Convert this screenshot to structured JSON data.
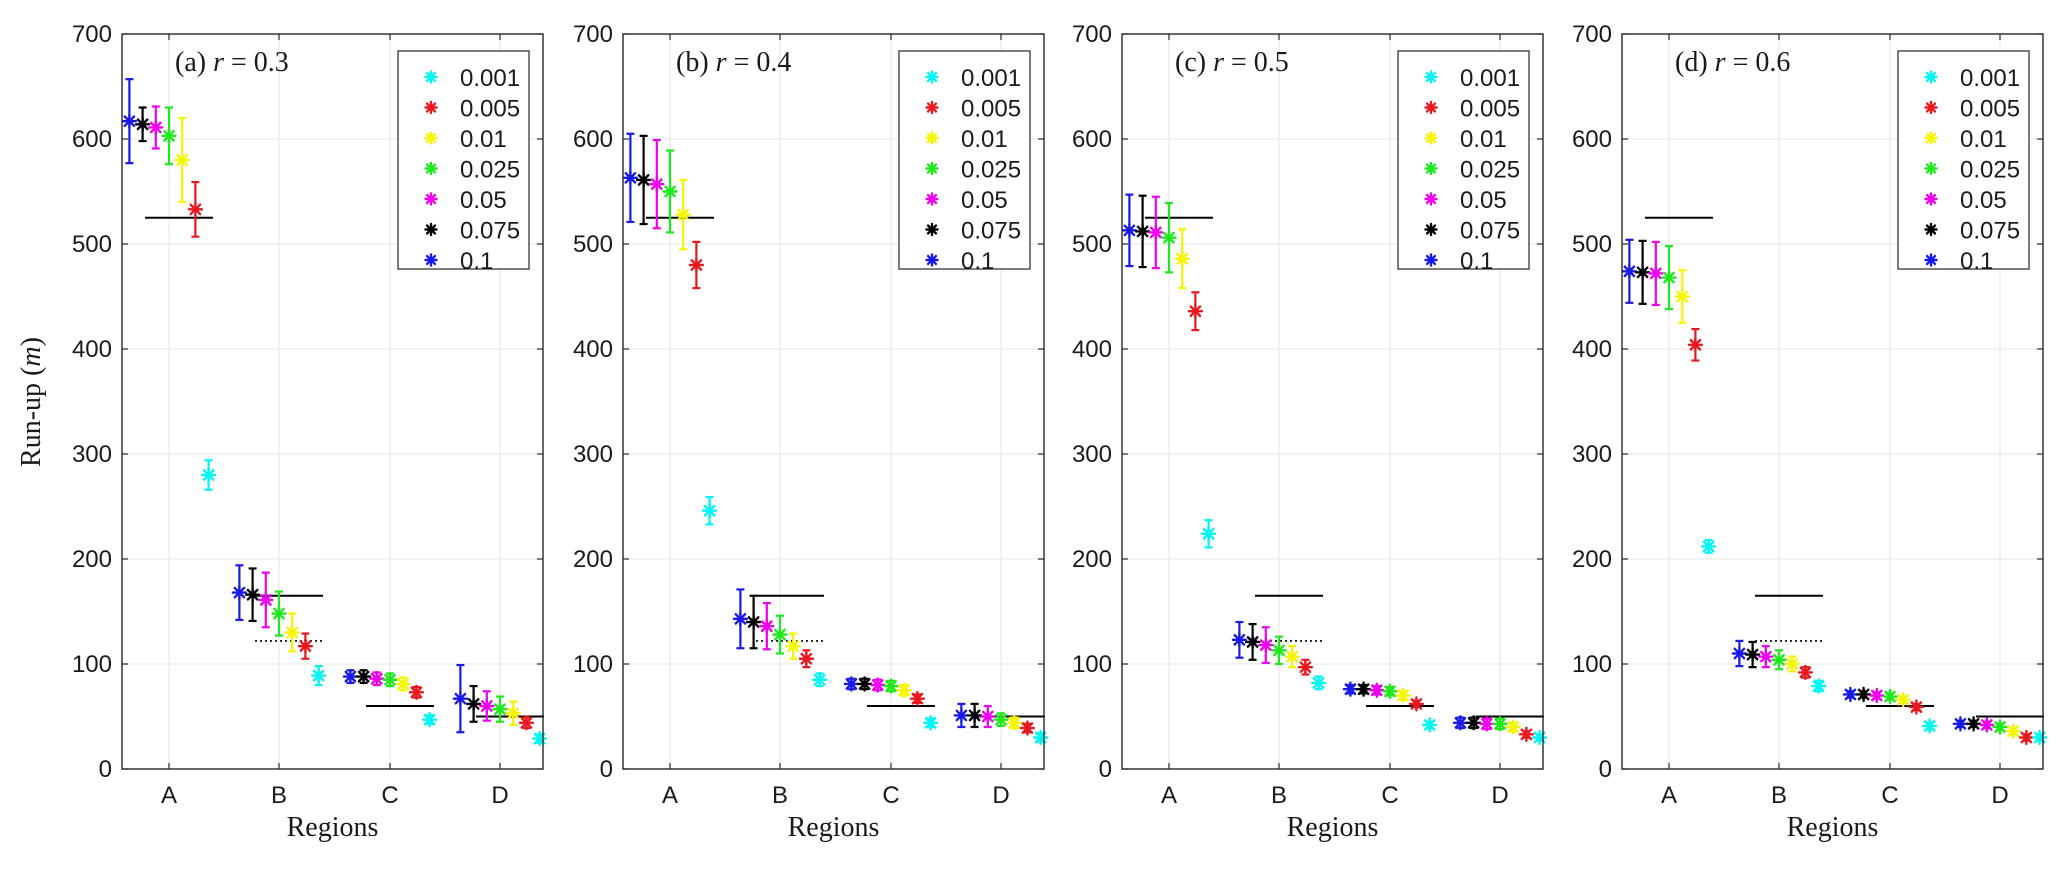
{
  "figure": {
    "ylabel": "Run-up (m)",
    "ylabel_prefix": "Run-up (",
    "ylabel_var": "m",
    "ylabel_suffix": ")"
  },
  "legend": {
    "entries": [
      {
        "label": "0.001",
        "color": "#00f5f5"
      },
      {
        "label": "0.005",
        "color": "#e8181e"
      },
      {
        "label": "0.01",
        "color": "#f5f500"
      },
      {
        "label": "0.025",
        "color": "#1ee81e"
      },
      {
        "label": "0.05",
        "color": "#ee00ee"
      },
      {
        "label": "0.075",
        "color": "#000000"
      },
      {
        "label": "0.1",
        "color": "#1a1ae6"
      }
    ]
  },
  "chart_data": [
    {
      "type": "scatter",
      "title": "(a) r = 0.3",
      "title_prefix": "(a) ",
      "title_var": "r",
      "title_suffix": " = 0.3",
      "xlabel": "Regions",
      "ylabel": "Run-up (m)",
      "categories": [
        "A",
        "B",
        "C",
        "D"
      ],
      "ylim": [
        0,
        700
      ],
      "yticks": [
        0,
        100,
        200,
        300,
        400,
        500,
        600,
        700
      ],
      "grid": true,
      "legend_position": "top-right",
      "reference_solid": [
        525,
        165,
        60,
        50
      ],
      "reference_dotted": [
        null,
        122,
        null,
        null
      ],
      "series": [
        {
          "name": "0.001",
          "mean": [
            280,
            89,
            47,
            29
          ],
          "err": [
            14,
            9,
            4,
            4
          ]
        },
        {
          "name": "0.005",
          "mean": [
            533,
            117,
            73,
            44
          ],
          "err": [
            26,
            12,
            5,
            5
          ]
        },
        {
          "name": "0.01",
          "mean": [
            580,
            130,
            81,
            53
          ],
          "err": [
            40,
            18,
            6,
            11
          ]
        },
        {
          "name": "0.025",
          "mean": [
            603,
            148,
            85,
            57
          ],
          "err": [
            27,
            21,
            6,
            12
          ]
        },
        {
          "name": "0.05",
          "mean": [
            611,
            161,
            86,
            60
          ],
          "err": [
            20,
            26,
            6,
            14
          ]
        },
        {
          "name": "0.075",
          "mean": [
            614,
            166,
            88,
            62
          ],
          "err": [
            16,
            25,
            6,
            17
          ]
        },
        {
          "name": "0.1",
          "mean": [
            617,
            168,
            88,
            67
          ],
          "err": [
            40,
            26,
            6,
            32
          ]
        }
      ]
    },
    {
      "type": "scatter",
      "title": "(b) r = 0.4",
      "title_prefix": "(b) ",
      "title_var": "r",
      "title_suffix": " = 0.4",
      "xlabel": "Regions",
      "ylabel": "",
      "categories": [
        "A",
        "B",
        "C",
        "D"
      ],
      "ylim": [
        0,
        700
      ],
      "yticks": [
        0,
        100,
        200,
        300,
        400,
        500,
        600,
        700
      ],
      "grid": true,
      "legend_position": "top-right",
      "reference_solid": [
        525,
        165,
        60,
        50
      ],
      "reference_dotted": [
        null,
        122,
        null,
        null
      ],
      "series": [
        {
          "name": "0.001",
          "mean": [
            246,
            85,
            44,
            30
          ],
          "err": [
            13,
            6,
            4,
            4
          ]
        },
        {
          "name": "0.005",
          "mean": [
            480,
            105,
            67,
            39
          ],
          "err": [
            22,
            8,
            4,
            4
          ]
        },
        {
          "name": "0.01",
          "mean": [
            528,
            117,
            75,
            44
          ],
          "err": [
            33,
            12,
            5,
            5
          ]
        },
        {
          "name": "0.025",
          "mean": [
            550,
            128,
            79,
            47
          ],
          "err": [
            39,
            18,
            5,
            6
          ]
        },
        {
          "name": "0.05",
          "mean": [
            557,
            136,
            80,
            50
          ],
          "err": [
            42,
            22,
            5,
            10
          ]
        },
        {
          "name": "0.075",
          "mean": [
            561,
            140,
            81,
            51
          ],
          "err": [
            42,
            25,
            5,
            11
          ]
        },
        {
          "name": "0.1",
          "mean": [
            563,
            143,
            81,
            51
          ],
          "err": [
            42,
            28,
            5,
            11
          ]
        }
      ]
    },
    {
      "type": "scatter",
      "title": "(c) r = 0.5",
      "title_prefix": "(c) ",
      "title_var": "r",
      "title_suffix": " = 0.5",
      "xlabel": "Regions",
      "ylabel": "",
      "categories": [
        "A",
        "B",
        "C",
        "D"
      ],
      "ylim": [
        0,
        700
      ],
      "yticks": [
        0,
        100,
        200,
        300,
        400,
        500,
        600,
        700
      ],
      "grid": true,
      "legend_position": "top-right",
      "reference_solid": [
        525,
        165,
        60,
        50
      ],
      "reference_dotted": [
        null,
        122,
        null,
        null
      ],
      "series": [
        {
          "name": "0.001",
          "mean": [
            224,
            82,
            42,
            30
          ],
          "err": [
            13,
            6,
            3,
            3
          ]
        },
        {
          "name": "0.005",
          "mean": [
            436,
            97,
            62,
            33
          ],
          "err": [
            18,
            7,
            3,
            3
          ]
        },
        {
          "name": "0.01",
          "mean": [
            486,
            107,
            70,
            40
          ],
          "err": [
            28,
            10,
            4,
            4
          ]
        },
        {
          "name": "0.025",
          "mean": [
            506,
            113,
            74,
            43
          ],
          "err": [
            33,
            13,
            4,
            5
          ]
        },
        {
          "name": "0.05",
          "mean": [
            511,
            118,
            75,
            43
          ],
          "err": [
            34,
            17,
            4,
            5
          ]
        },
        {
          "name": "0.075",
          "mean": [
            512,
            121,
            76,
            44
          ],
          "err": [
            34,
            17,
            4,
            5
          ]
        },
        {
          "name": "0.1",
          "mean": [
            513,
            123,
            76,
            44
          ],
          "err": [
            34,
            17,
            4,
            5
          ]
        }
      ]
    },
    {
      "type": "scatter",
      "title": "(d) r = 0.6",
      "title_prefix": "(d) ",
      "title_var": "r",
      "title_suffix": " = 0.6",
      "xlabel": "Regions",
      "ylabel": "",
      "categories": [
        "A",
        "B",
        "C",
        "D"
      ],
      "ylim": [
        0,
        700
      ],
      "yticks": [
        0,
        100,
        200,
        300,
        400,
        500,
        600,
        700
      ],
      "grid": true,
      "legend_position": "top-right",
      "reference_solid": [
        525,
        165,
        60,
        50
      ],
      "reference_dotted": [
        null,
        122,
        null,
        null
      ],
      "series": [
        {
          "name": "0.001",
          "mean": [
            212,
            79,
            41,
            30
          ],
          "err": [
            6,
            5,
            3,
            3
          ]
        },
        {
          "name": "0.005",
          "mean": [
            404,
            92,
            59,
            30
          ],
          "err": [
            15,
            5,
            3,
            3
          ]
        },
        {
          "name": "0.01",
          "mean": [
            450,
            100,
            66,
            36
          ],
          "err": [
            25,
            7,
            3,
            3
          ]
        },
        {
          "name": "0.025",
          "mean": [
            468,
            104,
            69,
            40
          ],
          "err": [
            30,
            9,
            3,
            3
          ]
        },
        {
          "name": "0.05",
          "mean": [
            472,
            107,
            70,
            42
          ],
          "err": [
            30,
            10,
            3,
            3
          ]
        },
        {
          "name": "0.075",
          "mean": [
            473,
            109,
            71,
            43
          ],
          "err": [
            30,
            12,
            3,
            3
          ]
        },
        {
          "name": "0.1",
          "mean": [
            474,
            110,
            71,
            43
          ],
          "err": [
            30,
            12,
            3,
            3
          ]
        }
      ]
    }
  ]
}
